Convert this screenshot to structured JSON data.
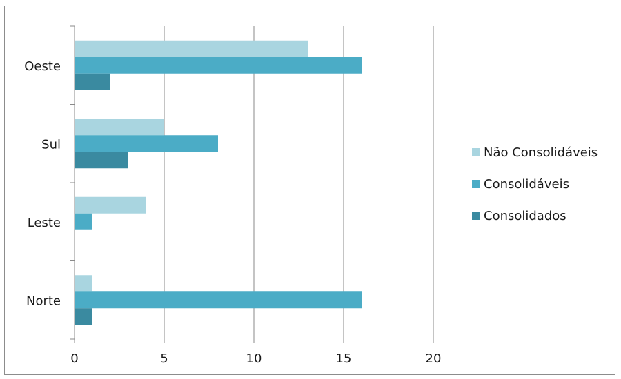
{
  "chart_data": {
    "type": "bar",
    "orientation": "horizontal",
    "categories": [
      "Oeste",
      "Sul",
      "Leste",
      "Norte"
    ],
    "series": [
      {
        "name": "Não Consolidáveis",
        "values": [
          13,
          5,
          4,
          1
        ],
        "color": "#a9d5e0"
      },
      {
        "name": "Consolidáveis",
        "values": [
          16,
          8,
          1,
          16
        ],
        "color": "#4bacc6"
      },
      {
        "name": "Consolidados",
        "values": [
          2,
          3,
          0,
          1
        ],
        "color": "#3a8aa0"
      }
    ],
    "xlim": [
      0,
      20
    ],
    "xticks": [
      0,
      5,
      10,
      15,
      20
    ],
    "grid": "vertical",
    "legend_position": "right"
  }
}
